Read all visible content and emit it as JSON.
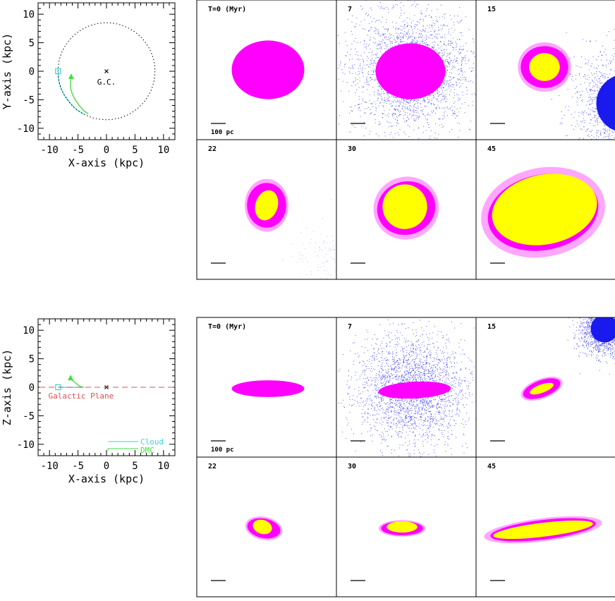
{
  "figure": {
    "colors": {
      "cloud": "#33d6d6",
      "dmc": "#44dd44",
      "dmc_particles": "#1a1aee",
      "gas": "#ff00ff",
      "stars": "#ffff00",
      "plane": "#e05050",
      "frame": "#000000"
    },
    "scale_bar_label": "100 pc"
  },
  "chart_data": [
    {
      "type": "line",
      "id": "orbit-xy",
      "xlabel": "X-axis (kpc)",
      "ylabel": "Y-axis (kpc)",
      "xlim": [
        -12,
        12
      ],
      "ylim": [
        -12,
        12
      ],
      "xticks": [
        "-10",
        "-5",
        "0",
        "5",
        "10"
      ],
      "yticks": [
        "10",
        "5",
        "0",
        "-5",
        "-10"
      ],
      "series": [
        {
          "name": "Cloud",
          "points": [
            [
              -8.5,
              0
            ],
            [
              -8.45,
              -1
            ],
            [
              -8.3,
              -2
            ],
            [
              -8.0,
              -3
            ],
            [
              -7.5,
              -4
            ],
            [
              -6.8,
              -5
            ],
            [
              -6.0,
              -6
            ],
            [
              -5.2,
              -6.8
            ],
            [
              -4.0,
              -7.5
            ]
          ]
        },
        {
          "name": "DMC",
          "points": [
            [
              -6.2,
              -1.0
            ],
            [
              -6.3,
              -2
            ],
            [
              -6.3,
              -3
            ],
            [
              -6.0,
              -4
            ],
            [
              -5.5,
              -5
            ],
            [
              -4.8,
              -6
            ],
            [
              -4.0,
              -6.9
            ],
            [
              -3.2,
              -7.5
            ]
          ]
        },
        {
          "name": "solar-circle",
          "center": [
            0,
            0
          ],
          "radius": 8.5
        }
      ],
      "markers": {
        "cloud_start": [
          -8.5,
          0
        ],
        "dmc_start": [
          -6.2,
          -1.0
        ],
        "gc": [
          0,
          0
        ]
      },
      "annotations": [
        {
          "text": "G.C.",
          "x": 0,
          "y": -2
        }
      ]
    },
    {
      "type": "line",
      "id": "orbit-xz",
      "xlabel": "X-axis (kpc)",
      "ylabel": "Z-axis (kpc)",
      "xlim": [
        -12,
        12
      ],
      "ylim": [
        -12,
        12
      ],
      "xticks": [
        "-10",
        "-5",
        "0",
        "5",
        "10"
      ],
      "yticks": [
        "10",
        "5",
        "0",
        "-5",
        "-10"
      ],
      "series": [
        {
          "name": "Cloud",
          "points": [
            [
              -8.5,
              0
            ],
            [
              -8.0,
              0
            ],
            [
              -7.0,
              0
            ],
            [
              -6.0,
              0
            ],
            [
              -5.0,
              0
            ],
            [
              -4.0,
              0
            ]
          ]
        },
        {
          "name": "DMC",
          "points": [
            [
              -6.3,
              1.6
            ],
            [
              -6.0,
              1.2
            ],
            [
              -5.5,
              0.8
            ],
            [
              -5.0,
              0.4
            ],
            [
              -4.5,
              0.1
            ],
            [
              -4.0,
              0
            ]
          ]
        }
      ],
      "markers": {
        "cloud_start": [
          -8.5,
          0
        ],
        "dmc_start": [
          -6.3,
          1.6
        ],
        "gc": [
          0,
          0
        ]
      },
      "annotations": [
        {
          "text": "Galactic Plane",
          "x": -10.2,
          "y": -1.6
        }
      ],
      "legend": {
        "position": "bottom-right",
        "entries": [
          "Cloud",
          "DMC"
        ]
      }
    },
    {
      "type": "scatter",
      "id": "snapshots-face-on",
      "time_unit": "(Myr)",
      "panels": [
        {
          "label": "T=0 (Myr)",
          "time": 0,
          "gas": [
            0.51,
            0.5,
            0.26,
            0.21,
            0
          ],
          "stars": null,
          "dmc": null
        },
        {
          "label": "7",
          "time": 7,
          "gas": [
            0.53,
            0.51,
            0.25,
            0.2,
            0
          ],
          "stars": null,
          "dmc": {
            "shape": "halo",
            "center": [
              0.53,
              0.5
            ],
            "r": 0.5
          }
        },
        {
          "label": "15",
          "time": 15,
          "gas": [
            0.49,
            0.48,
            0.17,
            0.15,
            0
          ],
          "stars": [
            0.49,
            0.48,
            0.11,
            0.1,
            0
          ],
          "dmc": {
            "shape": "corner",
            "center": [
              1.07,
              0.74
            ],
            "r": 0.38
          }
        },
        {
          "label": "22",
          "time": 22,
          "gas": [
            0.5,
            0.47,
            0.14,
            0.16,
            0
          ],
          "stars": [
            0.5,
            0.47,
            0.08,
            0.11,
            0.3
          ],
          "dmc": {
            "shape": "sparse",
            "center": [
              0.95,
              0.85
            ],
            "r": 0.25
          }
        },
        {
          "label": "30",
          "time": 30,
          "gas": [
            0.5,
            0.49,
            0.21,
            0.19,
            -0.3
          ],
          "stars": [
            0.49,
            0.48,
            0.16,
            0.16,
            -0.3
          ],
          "dmc": null
        },
        {
          "label": "45",
          "time": 45,
          "gas": [
            0.48,
            0.52,
            0.4,
            0.27,
            -0.2
          ],
          "stars": [
            0.49,
            0.5,
            0.38,
            0.25,
            -0.2
          ],
          "dmc": null
        }
      ]
    },
    {
      "type": "scatter",
      "id": "snapshots-edge-on",
      "time_unit": "(Myr)",
      "panels": [
        {
          "label": "T=0 (Myr)",
          "time": 0,
          "gas": [
            0.51,
            0.51,
            0.26,
            0.06,
            0
          ],
          "stars": null,
          "dmc": null
        },
        {
          "label": "7",
          "time": 7,
          "gas": [
            0.56,
            0.52,
            0.26,
            0.06,
            -0.05
          ],
          "stars": null,
          "dmc": {
            "shape": "halo",
            "center": [
              0.54,
              0.51
            ],
            "r": 0.46
          }
        },
        {
          "label": "15",
          "time": 15,
          "gas": [
            0.47,
            0.51,
            0.14,
            0.06,
            -0.35
          ],
          "stars": [
            0.47,
            0.51,
            0.09,
            0.03,
            -0.35
          ],
          "dmc": {
            "shape": "corner",
            "center": [
              0.92,
              0.08
            ],
            "r": 0.18
          }
        },
        {
          "label": "22",
          "time": 22,
          "gas": [
            0.48,
            0.51,
            0.12,
            0.07,
            0.2
          ],
          "stars": [
            0.47,
            0.5,
            0.07,
            0.05,
            0.3
          ],
          "dmc": null
        },
        {
          "label": "30",
          "time": 30,
          "gas": [
            0.47,
            0.51,
            0.15,
            0.05,
            0
          ],
          "stars": [
            0.47,
            0.5,
            0.11,
            0.04,
            0
          ],
          "dmc": null
        },
        {
          "label": "45",
          "time": 45,
          "gas": [
            0.48,
            0.52,
            0.38,
            0.07,
            -0.12
          ],
          "stars": [
            0.48,
            0.52,
            0.36,
            0.05,
            -0.12
          ],
          "dmc": null
        }
      ]
    }
  ]
}
